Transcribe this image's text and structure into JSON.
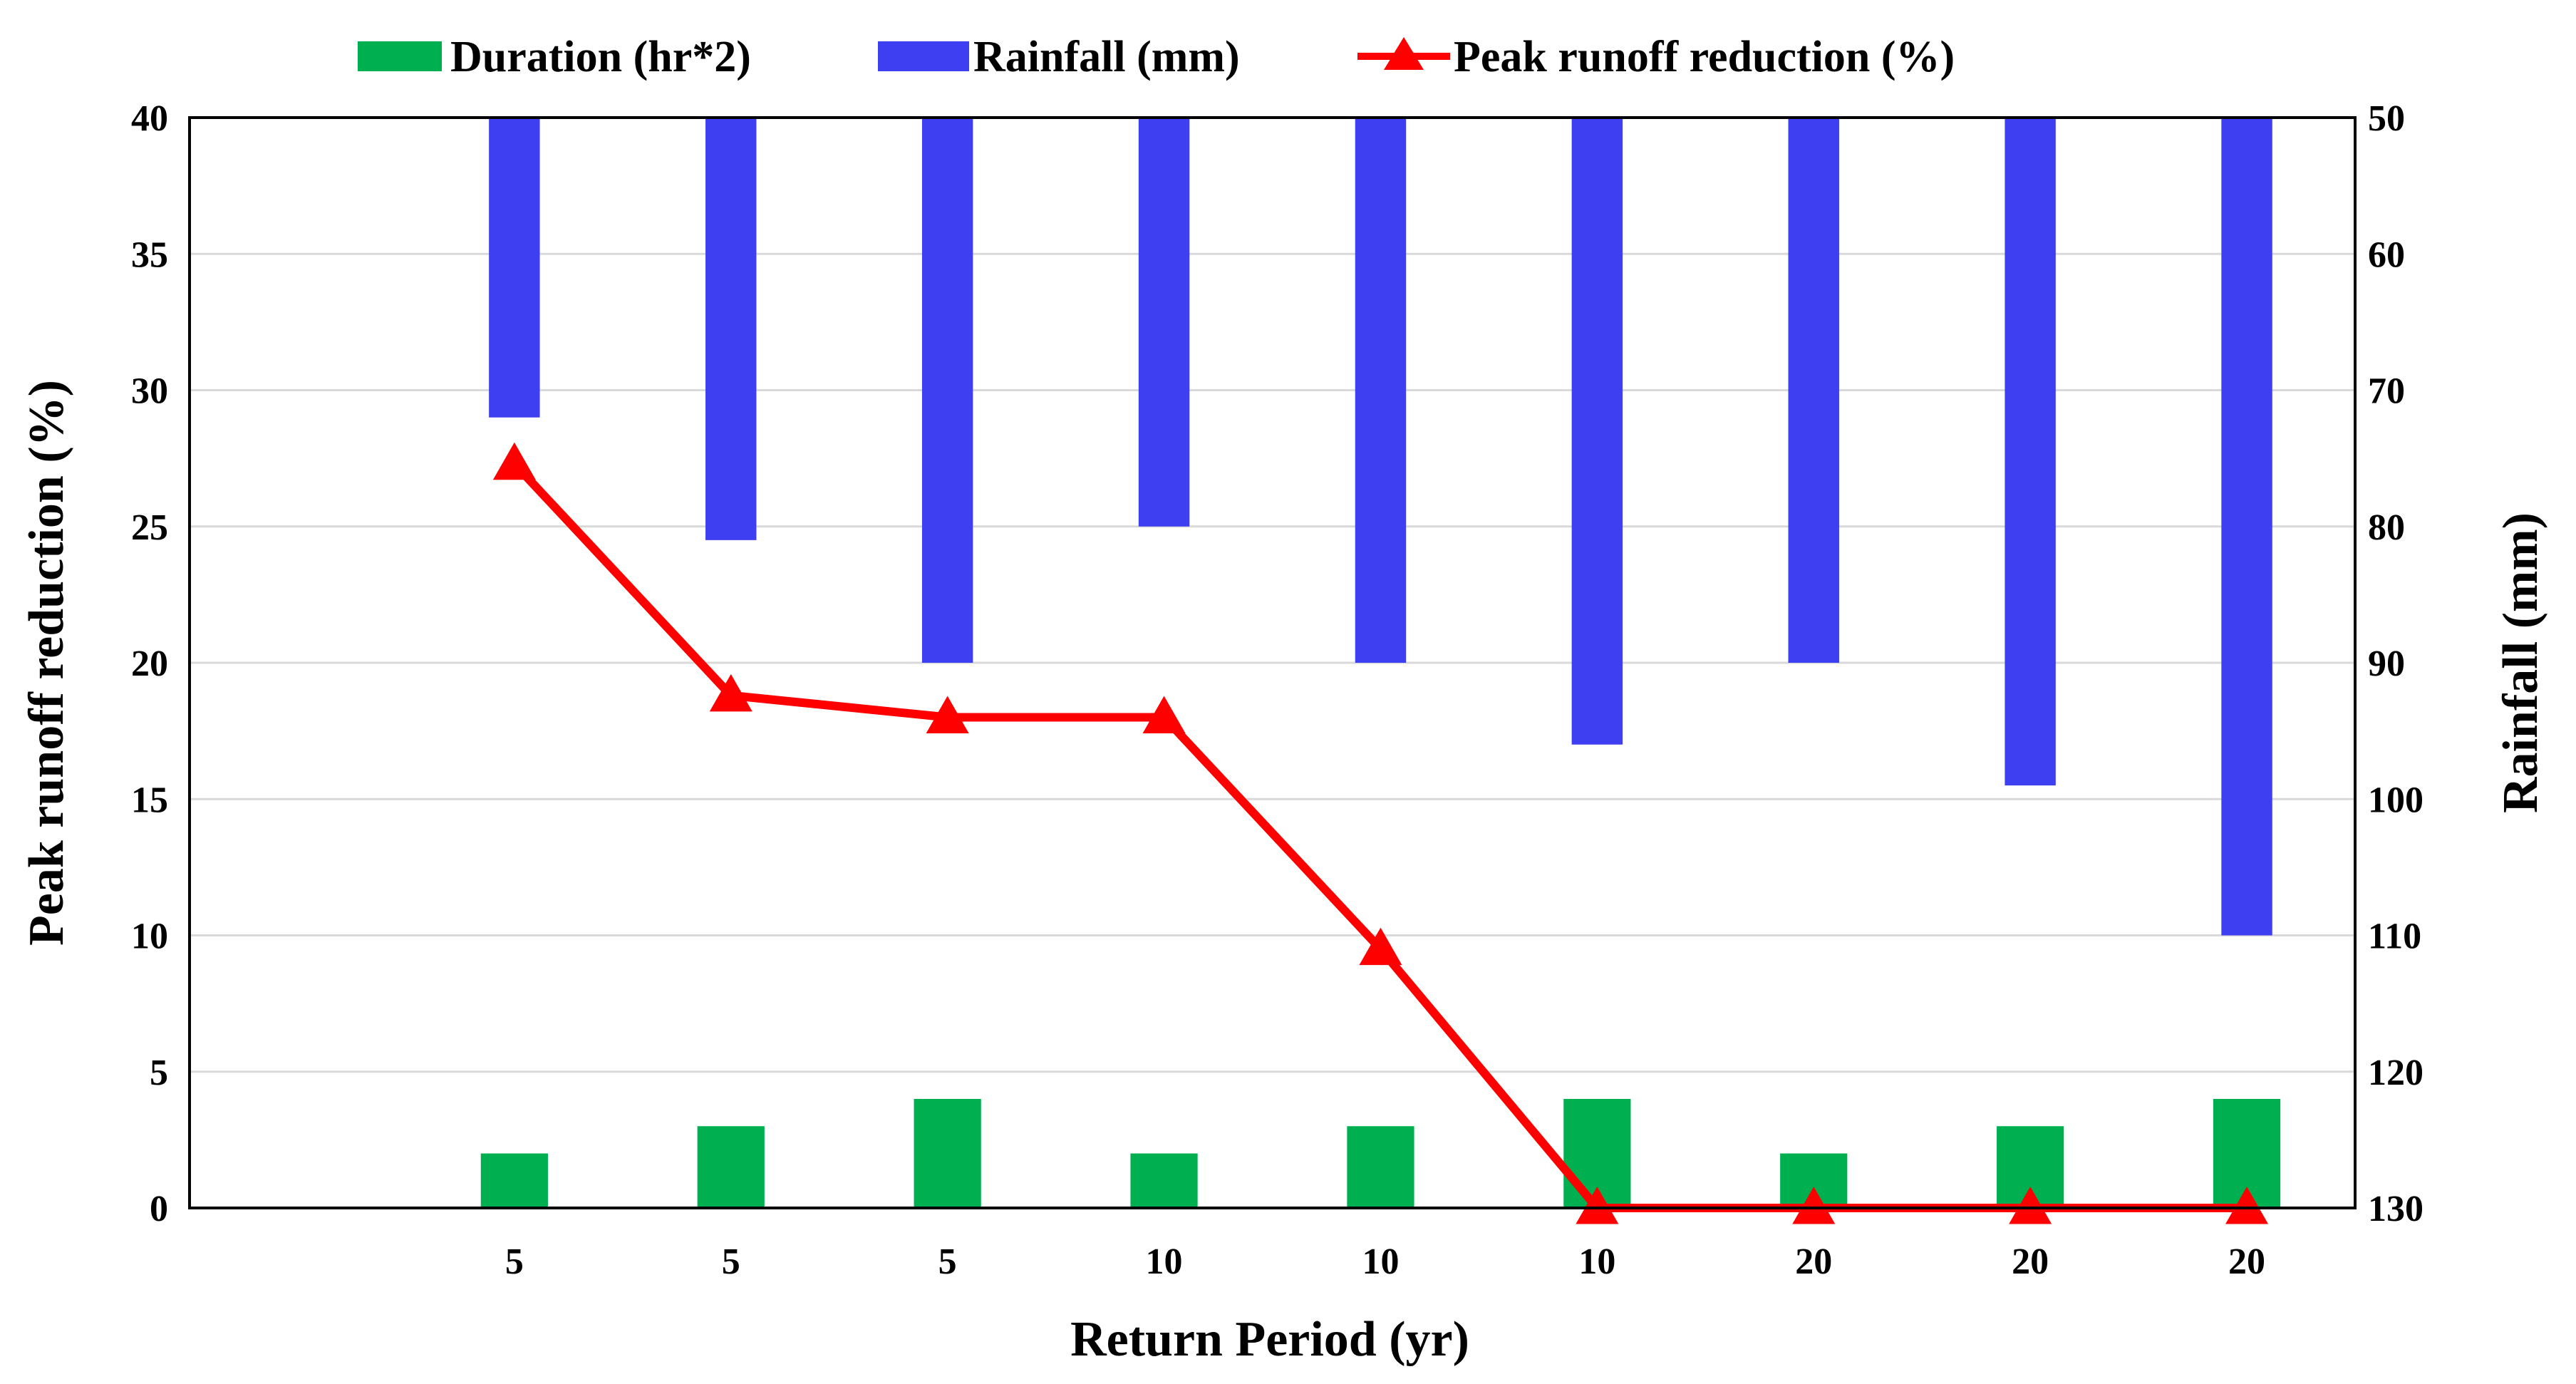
{
  "chart_data": {
    "type": "bar+line",
    "categories": [
      "",
      "5",
      "5",
      "5",
      "10",
      "10",
      "10",
      "20",
      "20",
      "20"
    ],
    "xlabel": "Return Period (yr)",
    "ylabel_left": "Peak runoff reduction (%)",
    "ylabel_right": "Rainfall (mm)",
    "ylim_left": [
      0,
      40
    ],
    "yticks_left": [
      "0",
      "5",
      "10",
      "15",
      "20",
      "25",
      "30",
      "35",
      "40"
    ],
    "ylim_right": [
      50,
      130
    ],
    "right_axis_inverted": true,
    "yticks_right": [
      "50",
      "60",
      "70",
      "80",
      "90",
      "100",
      "110",
      "120",
      "130"
    ],
    "grid": true,
    "legend_position": "top",
    "series": [
      {
        "name": "Duration (hr*2)",
        "type": "bar",
        "axis": "left",
        "color": "#00b050",
        "values": [
          null,
          2,
          3,
          4,
          2,
          3,
          4,
          2,
          3,
          4
        ]
      },
      {
        "name": "Rainfall (mm)",
        "type": "bar",
        "axis": "right",
        "color": "#3f3ff2",
        "values": [
          null,
          72,
          81,
          90,
          80,
          90,
          96,
          90,
          99,
          110
        ]
      },
      {
        "name": "Peak runoff reduction (%)",
        "type": "line",
        "axis": "left",
        "color": "#ff0000",
        "marker": "triangle",
        "values": [
          null,
          27.3,
          18.8,
          18.0,
          18.0,
          9.5,
          0,
          0,
          0,
          0
        ]
      }
    ]
  }
}
